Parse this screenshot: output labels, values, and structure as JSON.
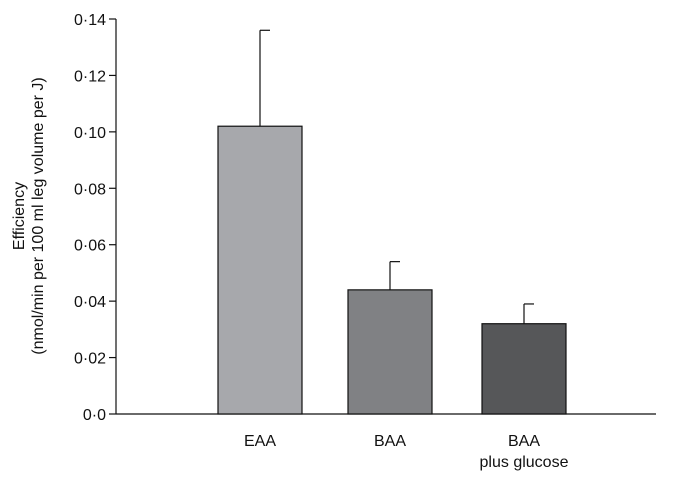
{
  "chart_data": {
    "type": "bar",
    "categories": [
      [
        "EAA"
      ],
      [
        "BAA"
      ],
      [
        "BAA",
        "plus glucose"
      ]
    ],
    "values": [
      0.102,
      0.044,
      0.032
    ],
    "error_upper": [
      0.136,
      0.054,
      0.039
    ],
    "bar_colors": [
      "#a7a8ac",
      "#808184",
      "#565759"
    ],
    "ylabel_lines": [
      "Efficiency",
      "(nmol/min per 100 ml leg volume per J)"
    ],
    "ylim": [
      0,
      0.14
    ],
    "yticks": [
      0,
      0.02,
      0.04,
      0.06,
      0.08,
      0.1,
      0.12,
      0.14
    ],
    "ytick_labels": [
      "0·0",
      "0·02",
      "0·04",
      "0·06",
      "0·08",
      "0·10",
      "0·12",
      "0·14"
    ],
    "grid": false,
    "legend": "none"
  }
}
